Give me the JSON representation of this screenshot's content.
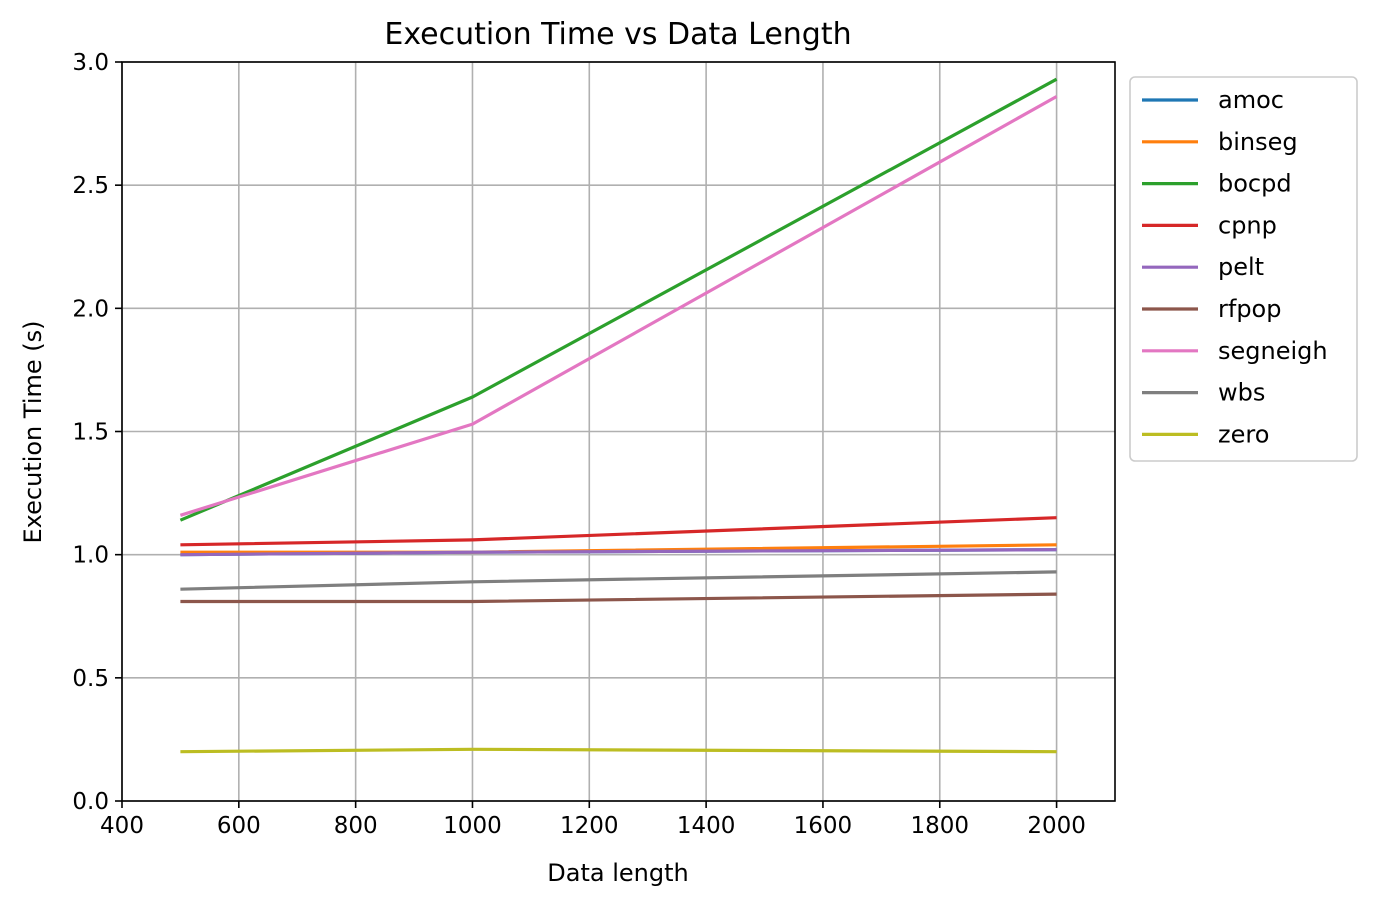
{
  "chart_data": {
    "type": "line",
    "title": "Execution Time vs Data Length",
    "xlabel": "Data length",
    "ylabel": "Execution Time (s)",
    "xlim": [
      400,
      2100
    ],
    "ylim": [
      0.0,
      3.0
    ],
    "xticks": [
      400,
      600,
      800,
      1000,
      1200,
      1400,
      1600,
      1800,
      2000
    ],
    "xtick_labels": [
      "400",
      "600",
      "800",
      "1000",
      "1200",
      "1400",
      "1600",
      "1800",
      "2000"
    ],
    "yticks": [
      0.0,
      0.5,
      1.0,
      1.5,
      2.0,
      2.5,
      3.0
    ],
    "ytick_labels": [
      "0.0",
      "0.5",
      "1.0",
      "1.5",
      "2.0",
      "2.5",
      "3.0"
    ],
    "grid": true,
    "legend_position": "outside-right-top",
    "x": [
      500,
      1000,
      2000
    ],
    "series": [
      {
        "name": "amoc",
        "color": "#1f77b4",
        "values": [
          1.0,
          1.01,
          1.02
        ]
      },
      {
        "name": "binseg",
        "color": "#ff7f0e",
        "values": [
          1.01,
          1.01,
          1.04
        ]
      },
      {
        "name": "bocpd",
        "color": "#2ca02c",
        "values": [
          1.14,
          1.64,
          2.93
        ]
      },
      {
        "name": "cpnp",
        "color": "#d62728",
        "values": [
          1.04,
          1.06,
          1.15
        ]
      },
      {
        "name": "pelt",
        "color": "#9467bd",
        "values": [
          1.0,
          1.01,
          1.02
        ]
      },
      {
        "name": "rfpop",
        "color": "#8c564b",
        "values": [
          0.81,
          0.81,
          0.84
        ]
      },
      {
        "name": "segneigh",
        "color": "#e377c2",
        "values": [
          1.16,
          1.53,
          2.86
        ]
      },
      {
        "name": "wbs",
        "color": "#7f7f7f",
        "values": [
          0.86,
          0.89,
          0.93
        ]
      },
      {
        "name": "zero",
        "color": "#bcbd22",
        "values": [
          0.2,
          0.21,
          0.2
        ]
      }
    ]
  }
}
